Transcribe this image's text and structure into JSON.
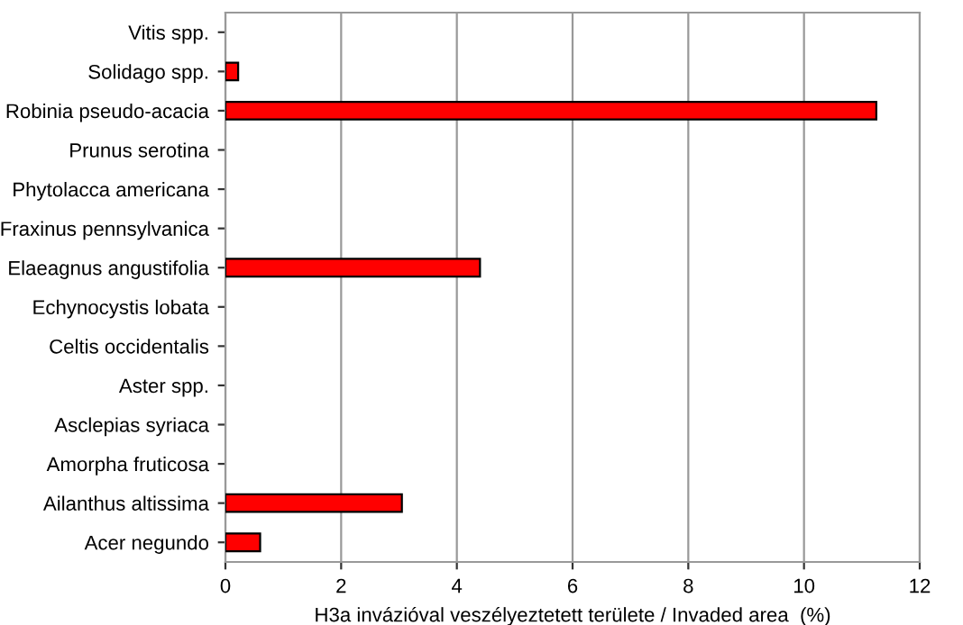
{
  "chart_data": {
    "type": "bar",
    "orientation": "horizontal",
    "xlabel": "H3a invázióval veszélyeztetett területe / Invaded area  (%)",
    "categories": [
      "Vitis spp.",
      "Solidago spp.",
      "Robinia pseudo-acacia",
      "Prunus serotina",
      "Phytolacca americana",
      "Fraxinus pennsylvanica",
      "Elaeagnus angustifolia",
      "Echynocystis lobata",
      "Celtis occidentalis",
      "Aster spp.",
      "Asclepias syriaca",
      "Amorpha fruticosa",
      "Ailanthus altissima",
      "Acer negundo"
    ],
    "values": [
      0,
      0.22,
      11.25,
      0,
      0,
      0,
      4.4,
      0,
      0,
      0,
      0,
      0,
      3.05,
      0.6
    ],
    "color": "#ff0000",
    "xlim": [
      0,
      12
    ],
    "xticks": [
      0,
      2,
      4,
      6,
      8,
      10,
      12
    ],
    "grid": "x"
  }
}
